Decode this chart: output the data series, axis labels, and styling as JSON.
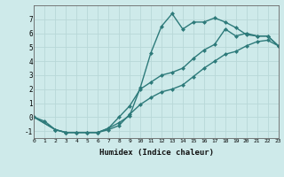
{
  "xlabel": "Humidex (Indice chaleur)",
  "bg_color": "#ceeaea",
  "line_color": "#2d7a7a",
  "grid_color": "#b8d8d8",
  "line1_x": [
    0,
    1,
    2,
    3,
    4,
    5,
    6,
    7,
    8,
    9,
    10,
    11,
    12,
    13,
    14,
    15,
    16,
    17,
    18,
    19,
    20,
    21,
    22,
    23
  ],
  "line1_y": [
    0,
    -0.3,
    -0.9,
    -1.1,
    -1.1,
    -1.1,
    -1.1,
    -0.8,
    -0.4,
    0.1,
    2.1,
    4.6,
    6.5,
    7.4,
    6.3,
    6.8,
    6.8,
    7.1,
    6.8,
    6.4,
    5.9,
    5.8,
    5.8,
    5.1
  ],
  "line2_x": [
    0,
    2,
    3,
    4,
    5,
    6,
    7,
    8,
    9,
    10,
    11,
    12,
    13,
    14,
    15,
    16,
    17,
    18,
    19,
    20,
    21,
    22,
    23
  ],
  "line2_y": [
    0,
    -0.9,
    -1.1,
    -1.1,
    -1.1,
    -1.1,
    -0.8,
    0.0,
    0.8,
    2.0,
    2.5,
    3.0,
    3.2,
    3.5,
    4.2,
    4.8,
    5.2,
    6.3,
    5.8,
    6.0,
    5.8,
    5.8,
    5.1
  ],
  "line3_x": [
    0,
    2,
    3,
    4,
    5,
    6,
    7,
    8,
    9,
    10,
    11,
    12,
    13,
    14,
    15,
    16,
    17,
    18,
    19,
    20,
    21,
    22,
    23
  ],
  "line3_y": [
    0,
    -0.9,
    -1.1,
    -1.1,
    -1.1,
    -1.1,
    -0.9,
    -0.6,
    0.2,
    0.9,
    1.4,
    1.8,
    2.0,
    2.3,
    2.9,
    3.5,
    4.0,
    4.5,
    4.7,
    5.1,
    5.4,
    5.5,
    5.1
  ],
  "xlim": [
    0,
    23
  ],
  "ylim": [
    -1.5,
    8.0
  ],
  "yticks": [
    -1,
    0,
    1,
    2,
    3,
    4,
    5,
    6,
    7
  ],
  "xticks": [
    0,
    1,
    2,
    3,
    4,
    5,
    6,
    7,
    8,
    9,
    10,
    11,
    12,
    13,
    14,
    15,
    16,
    17,
    18,
    19,
    20,
    21,
    22,
    23
  ],
  "xtick_labels": [
    "0",
    "1",
    "2",
    "3",
    "4",
    "5",
    "6",
    "7",
    "8",
    "9",
    "10",
    "11",
    "12",
    "13",
    "14",
    "15",
    "16",
    "17",
    "18",
    "19",
    "20",
    "21",
    "22",
    "23"
  ]
}
